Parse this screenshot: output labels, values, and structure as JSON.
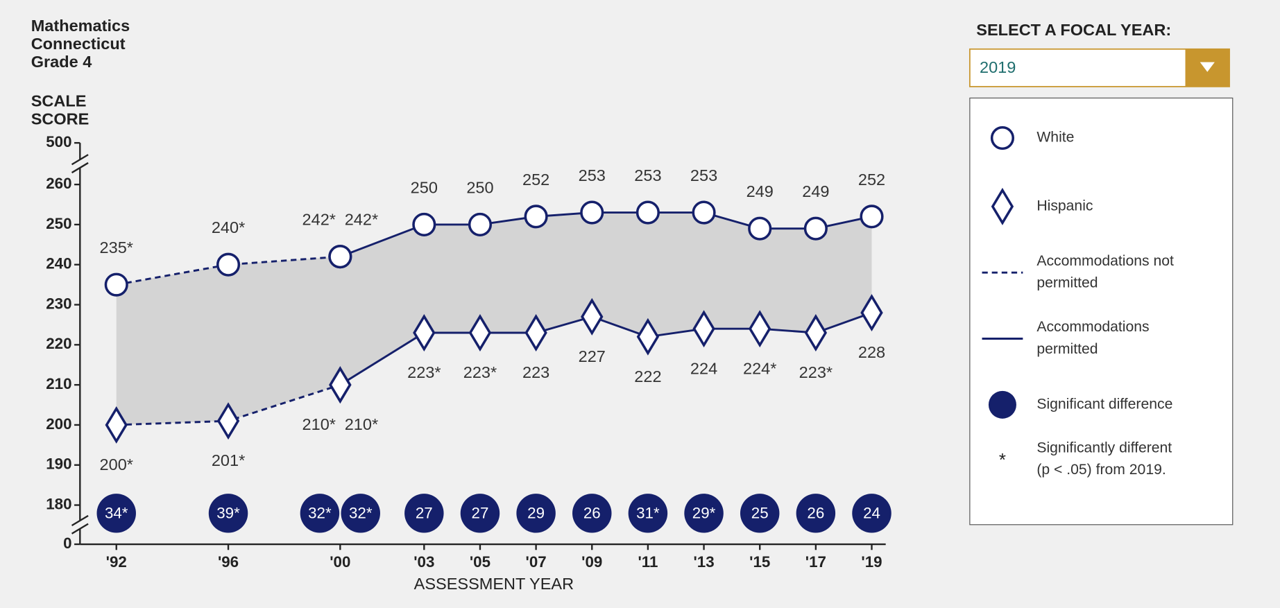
{
  "controls": {
    "label": "SELECT A FOCAL YEAR:",
    "selected": "2019"
  },
  "chart_data": {
    "type": "line",
    "title_lines": [
      "Mathematics",
      "Connecticut",
      "Grade 4"
    ],
    "y_label_lines": [
      "SCALE",
      "SCORE"
    ],
    "x_label": "ASSESSMENT YEAR",
    "xlim": [
      1990.7,
      2019.5
    ],
    "xticks": [
      {
        "value": 1992,
        "label": "'92"
      },
      {
        "value": 1996,
        "label": "'96"
      },
      {
        "value": 2000,
        "label": "'00"
      },
      {
        "value": 2003,
        "label": "'03"
      },
      {
        "value": 2005,
        "label": "'05"
      },
      {
        "value": 2007,
        "label": "'07"
      },
      {
        "value": 2009,
        "label": "'09"
      },
      {
        "value": 2011,
        "label": "'11"
      },
      {
        "value": 2013,
        "label": "'13"
      },
      {
        "value": 2015,
        "label": "'15"
      },
      {
        "value": 2017,
        "label": "'17"
      },
      {
        "value": 2019,
        "label": "'19"
      }
    ],
    "ylim": [
      0,
      500
    ],
    "yticks": [
      0,
      180,
      190,
      200,
      210,
      220,
      230,
      240,
      250,
      260,
      500
    ],
    "y_breaks": [
      [
        0,
        180
      ],
      [
        260,
        500
      ]
    ],
    "area_color": "#d4d4d4",
    "series": [
      {
        "marker": "circle",
        "line": "dashed",
        "color": "#15206b",
        "x": [
          1992,
          1996,
          2000
        ],
        "values": [
          235,
          240,
          242
        ],
        "value_labels": [
          "235*",
          "240*",
          "242*"
        ]
      },
      {
        "marker": "circle",
        "line": "solid",
        "color": "#15206b",
        "x": [
          2000,
          2003,
          2005,
          2007,
          2009,
          2011,
          2013,
          2015,
          2017,
          2019
        ],
        "values": [
          242,
          250,
          250,
          252,
          253,
          253,
          253,
          249,
          249,
          252
        ],
        "value_labels": [
          "242*",
          "250",
          "250",
          "252",
          "253",
          "253",
          "253",
          "249",
          "249",
          "252"
        ]
      },
      {
        "marker": "diamond",
        "line": "dashed",
        "color": "#15206b",
        "x": [
          1992,
          1996,
          2000
        ],
        "values": [
          200,
          201,
          210
        ],
        "value_labels": [
          "200*",
          "201*",
          "210*"
        ]
      },
      {
        "marker": "diamond",
        "line": "solid",
        "color": "#15206b",
        "x": [
          2000,
          2003,
          2005,
          2007,
          2009,
          2011,
          2013,
          2015,
          2017,
          2019
        ],
        "values": [
          210,
          223,
          223,
          223,
          227,
          222,
          224,
          224,
          223,
          228
        ],
        "value_labels": [
          "210*",
          "223*",
          "223*",
          "223",
          "227",
          "222",
          "224",
          "224*",
          "223*",
          "228"
        ]
      }
    ],
    "gap": {
      "color": "#15206b",
      "x": [
        1992,
        1996,
        2000,
        2000,
        2003,
        2005,
        2007,
        2009,
        2011,
        2013,
        2015,
        2017,
        2019
      ],
      "values": [
        34,
        39,
        32,
        32,
        27,
        27,
        29,
        26,
        31,
        29,
        25,
        26,
        24
      ],
      "value_labels": [
        "34*",
        "39*",
        "32*",
        "32*",
        "27",
        "27",
        "29",
        "26",
        "31*",
        "29*",
        "25",
        "26",
        "24"
      ]
    },
    "legend": {
      "items": [
        {
          "symbol": "circle",
          "lines": [
            "White"
          ]
        },
        {
          "symbol": "diamond",
          "lines": [
            "Hispanic"
          ]
        },
        {
          "symbol": "dashed",
          "lines": [
            "Accommodations not",
            "permitted"
          ]
        },
        {
          "symbol": "solid",
          "lines": [
            "Accommodations",
            "permitted"
          ]
        },
        {
          "symbol": "dot",
          "lines": [
            "Significant difference"
          ]
        },
        {
          "symbol_text": "*",
          "lines": [
            "Significantly different",
            "(p < .05) from 2019."
          ]
        }
      ]
    }
  }
}
